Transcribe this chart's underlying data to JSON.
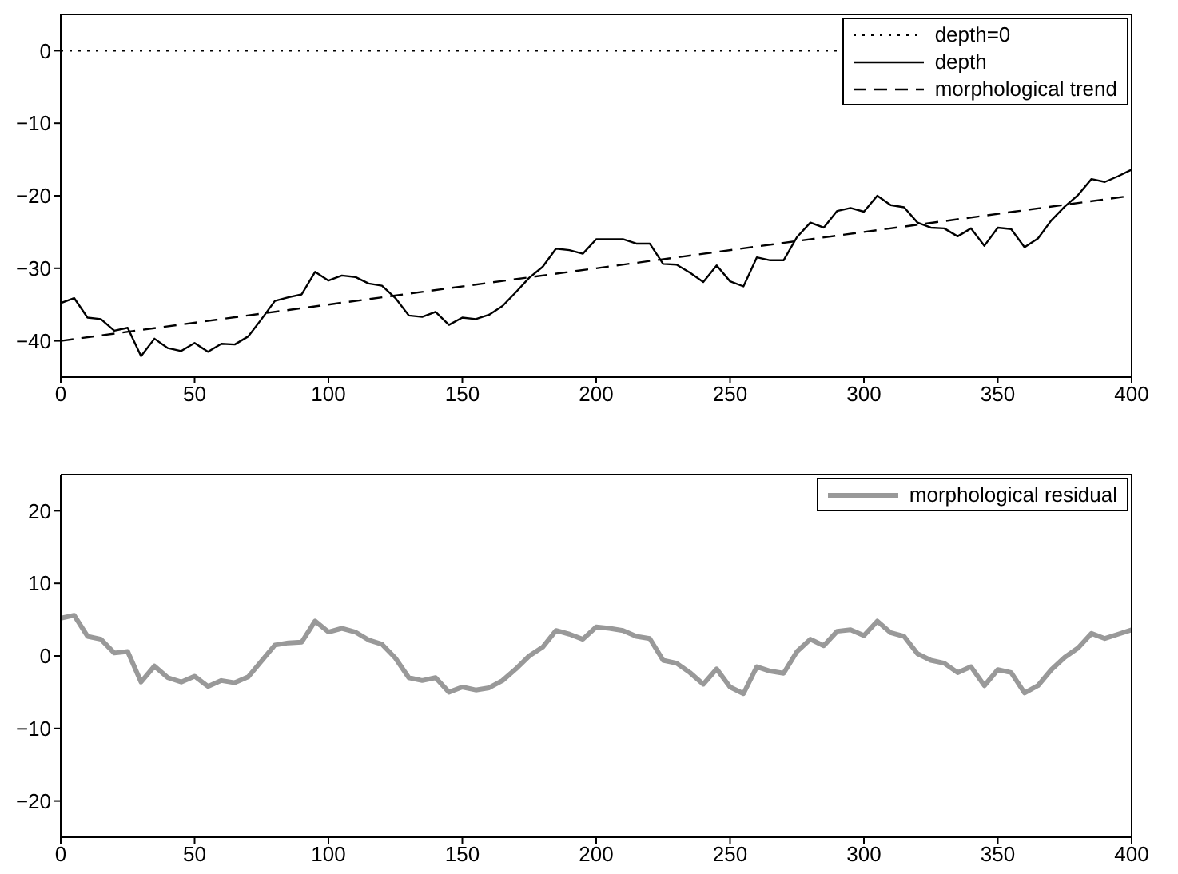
{
  "chart_data": [
    {
      "type": "line",
      "x": [
        0,
        5,
        10,
        15,
        20,
        25,
        30,
        35,
        40,
        45,
        50,
        55,
        60,
        65,
        70,
        75,
        80,
        85,
        90,
        95,
        100,
        105,
        110,
        115,
        120,
        125,
        130,
        135,
        140,
        145,
        150,
        155,
        160,
        165,
        170,
        175,
        180,
        185,
        190,
        195,
        200,
        205,
        210,
        215,
        220,
        225,
        230,
        235,
        240,
        245,
        250,
        255,
        260,
        265,
        270,
        275,
        280,
        285,
        290,
        295,
        300,
        305,
        310,
        315,
        320,
        325,
        330,
        335,
        340,
        345,
        350,
        355,
        360,
        365,
        370,
        375,
        380,
        385,
        390,
        395,
        400
      ],
      "series": [
        {
          "name": "depth",
          "color": "#000000",
          "line_style": "solid",
          "values": [
            -34.8,
            -34.1,
            -36.8,
            -37.0,
            -38.6,
            -38.2,
            -42.1,
            -39.7,
            -41.0,
            -41.4,
            -40.3,
            -41.5,
            -40.4,
            -40.5,
            -39.4,
            -37.0,
            -34.5,
            -34.0,
            -33.6,
            -30.5,
            -31.7,
            -31.0,
            -31.2,
            -32.1,
            -32.4,
            -34.1,
            -36.5,
            -36.7,
            -36.0,
            -37.8,
            -36.8,
            -37.0,
            -36.4,
            -35.2,
            -33.3,
            -31.3,
            -29.8,
            -27.3,
            -27.5,
            -28.0,
            -26.0,
            -26.0,
            -26.0,
            -26.6,
            -26.6,
            -29.4,
            -29.5,
            -30.6,
            -31.9,
            -29.6,
            -31.8,
            -32.5,
            -28.5,
            -28.9,
            -28.9,
            -25.7,
            -23.7,
            -24.4,
            -22.1,
            -21.7,
            -22.2,
            -20.0,
            -21.3,
            -21.6,
            -23.7,
            -24.4,
            -24.5,
            -25.6,
            -24.5,
            -26.9,
            -24.4,
            -24.6,
            -27.1,
            -25.9,
            -23.4,
            -21.5,
            -19.9,
            -17.7,
            -18.1,
            -17.3,
            -16.4
          ]
        },
        {
          "name": "morphological trend",
          "color": "#000000",
          "line_style": "dashed",
          "x": [
            0,
            400
          ],
          "values": [
            -40,
            -20
          ]
        }
      ],
      "ref_lines": [
        {
          "axis": "y",
          "value": 0,
          "label": "depth=0",
          "color": "#000000",
          "line_style": "dotted"
        }
      ],
      "xlim": [
        0,
        400
      ],
      "xticks": [
        0,
        50,
        100,
        150,
        200,
        250,
        300,
        350,
        400
      ],
      "ylim": [
        -45,
        5
      ],
      "yticks": [
        -40,
        -30,
        -20,
        -10,
        0
      ],
      "grid": false,
      "legend": "top right",
      "marker": "none"
    },
    {
      "type": "line",
      "x": [
        0,
        5,
        10,
        15,
        20,
        25,
        30,
        35,
        40,
        45,
        50,
        55,
        60,
        65,
        70,
        75,
        80,
        85,
        90,
        95,
        100,
        105,
        110,
        115,
        120,
        125,
        130,
        135,
        140,
        145,
        150,
        155,
        160,
        165,
        170,
        175,
        180,
        185,
        190,
        195,
        200,
        205,
        210,
        215,
        220,
        225,
        230,
        235,
        240,
        245,
        250,
        255,
        260,
        265,
        270,
        275,
        280,
        285,
        290,
        295,
        300,
        305,
        310,
        315,
        320,
        325,
        330,
        335,
        340,
        345,
        350,
        355,
        360,
        365,
        370,
        375,
        380,
        385,
        390,
        395,
        400
      ],
      "series": [
        {
          "name": "morphological residual",
          "color": "#999999",
          "line_style": "solid",
          "values": [
            5.2,
            5.6,
            2.7,
            2.3,
            0.4,
            0.6,
            -3.6,
            -1.4,
            -3.0,
            -3.6,
            -2.8,
            -4.2,
            -3.4,
            -3.7,
            -2.9,
            -0.7,
            1.5,
            1.8,
            1.9,
            4.8,
            3.3,
            3.8,
            3.3,
            2.2,
            1.6,
            -0.3,
            -3.0,
            -3.4,
            -3.0,
            -5.0,
            -4.3,
            -4.7,
            -4.4,
            -3.4,
            -1.8,
            0.0,
            1.2,
            3.5,
            3.0,
            2.3,
            4.0,
            3.8,
            3.5,
            2.7,
            2.4,
            -0.6,
            -1.0,
            -2.3,
            -3.9,
            -1.8,
            -4.3,
            -5.2,
            -1.5,
            -2.1,
            -2.4,
            0.6,
            2.3,
            1.4,
            3.4,
            3.6,
            2.8,
            4.8,
            3.2,
            2.7,
            0.3,
            -0.6,
            -1.0,
            -2.3,
            -1.5,
            -4.1,
            -1.9,
            -2.3,
            -5.1,
            -4.1,
            -1.9,
            -0.2,
            1.1,
            3.1,
            2.4,
            3.0,
            3.6
          ]
        }
      ],
      "xlim": [
        0,
        400
      ],
      "xticks": [
        0,
        50,
        100,
        150,
        200,
        250,
        300,
        350,
        400
      ],
      "ylim": [
        -25,
        25
      ],
      "yticks": [
        -20,
        -10,
        0,
        10,
        20
      ],
      "grid": false,
      "legend": "top right",
      "marker": "none"
    }
  ]
}
